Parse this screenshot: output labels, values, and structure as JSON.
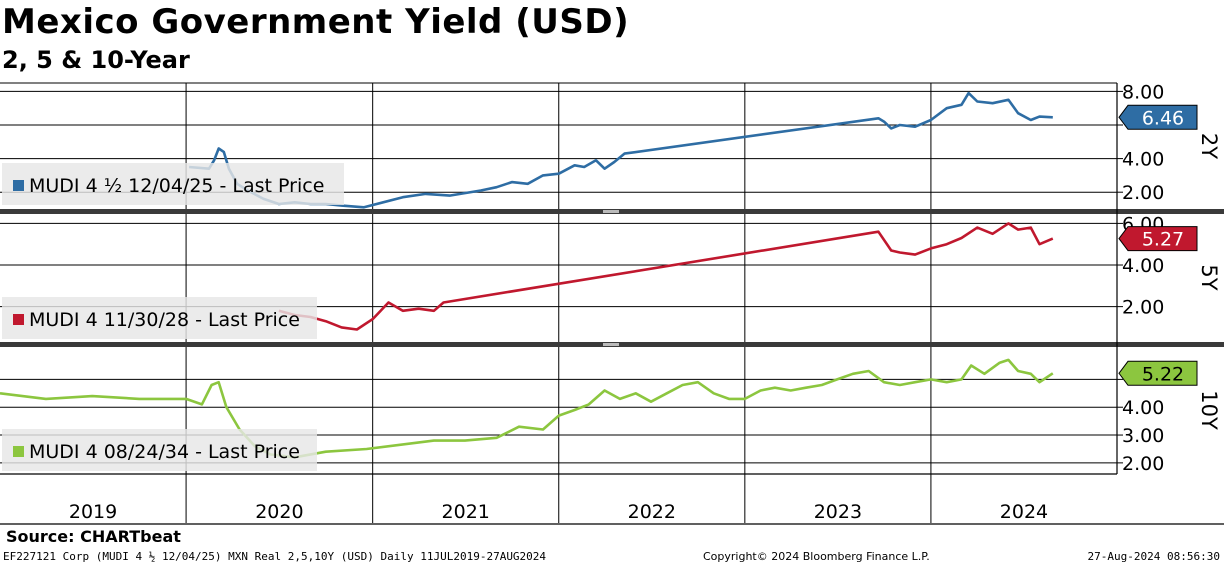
{
  "title": "Mexico Government Yield (USD)",
  "subtitle": "2, 5 & 10-Year",
  "source": "Source: CHARTbeat",
  "footer": {
    "left": "EF227121 Corp (MUDI 4 ½ 12/04/25) MXN Real 2,5,10Y (USD)  Daily 11JUL2019-27AUG2024",
    "center": "Copyright© 2024 Bloomberg Finance L.P.",
    "right": "27-Aug-2024 08:56:30"
  },
  "chart_data": {
    "type": "line",
    "x_axis": {
      "labels": [
        "2019",
        "2020",
        "2021",
        "2022",
        "2023",
        "2024"
      ],
      "range": [
        "2019-01-01",
        "2024-12-31"
      ]
    },
    "panels": [
      {
        "tenor_label": "2Y",
        "legend": "MUDI 4 ½  12/04/25 - Last Price",
        "color": "#2e6da4",
        "last_value": 6.46,
        "last_label": "6.46",
        "ylim": [
          1.0,
          8.5
        ],
        "ticks": [
          2.0,
          4.0,
          6.0,
          8.0
        ],
        "tick_labels": [
          "2.00",
          "4.00",
          "",
          "8.00"
        ],
        "points": [
          [
            "2020-01-07",
            3.5
          ],
          [
            "2020-02-15",
            3.4
          ],
          [
            "2020-02-25",
            3.9
          ],
          [
            "2020-03-05",
            4.6
          ],
          [
            "2020-03-15",
            4.4
          ],
          [
            "2020-03-25",
            3.4
          ],
          [
            "2020-04-10",
            2.5
          ],
          [
            "2020-05-01",
            2.1
          ],
          [
            "2020-06-01",
            1.6
          ],
          [
            "2020-07-01",
            1.3
          ],
          [
            "2020-08-01",
            1.4
          ],
          [
            "2020-09-01",
            1.3
          ],
          [
            "2020-10-01",
            1.3
          ],
          [
            "2020-11-01",
            1.2
          ],
          [
            "2020-12-15",
            1.1
          ],
          [
            "2021-03-01",
            1.7
          ],
          [
            "2021-04-15",
            1.9
          ],
          [
            "2021-06-01",
            1.8
          ],
          [
            "2021-08-01",
            2.1
          ],
          [
            "2021-09-01",
            2.3
          ],
          [
            "2021-10-01",
            2.6
          ],
          [
            "2021-11-01",
            2.5
          ],
          [
            "2021-12-01",
            3.0
          ],
          [
            "2022-01-01",
            3.1
          ],
          [
            "2022-02-01",
            3.6
          ],
          [
            "2022-02-20",
            3.5
          ],
          [
            "2022-03-15",
            3.9
          ],
          [
            "2022-04-01",
            3.4
          ],
          [
            "2022-04-20",
            3.8
          ],
          [
            "2022-05-10",
            4.3
          ],
          [
            "2023-09-20",
            6.4
          ],
          [
            "2023-10-01",
            6.2
          ],
          [
            "2023-10-15",
            5.8
          ],
          [
            "2023-11-01",
            6.0
          ],
          [
            "2023-12-01",
            5.9
          ],
          [
            "2024-01-01",
            6.3
          ],
          [
            "2024-02-01",
            7.0
          ],
          [
            "2024-03-01",
            7.2
          ],
          [
            "2024-03-15",
            7.9
          ],
          [
            "2024-04-01",
            7.4
          ],
          [
            "2024-05-01",
            7.3
          ],
          [
            "2024-06-01",
            7.5
          ],
          [
            "2024-06-20",
            6.7
          ],
          [
            "2024-07-15",
            6.3
          ],
          [
            "2024-08-01",
            6.5
          ],
          [
            "2024-08-27",
            6.46
          ]
        ]
      },
      {
        "tenor_label": "5Y",
        "legend": "MUDI 4 11/30/28 - Last Price",
        "color": "#c0182e",
        "last_value": 5.27,
        "last_label": "5.27",
        "ylim": [
          0.3,
          6.5
        ],
        "ticks": [
          2.0,
          4.0,
          6.0
        ],
        "tick_labels": [
          "2.00",
          "4.00",
          "6.00"
        ],
        "points": [
          [
            "2020-07-01",
            1.8
          ],
          [
            "2020-08-01",
            1.6
          ],
          [
            "2020-09-01",
            1.5
          ],
          [
            "2020-10-01",
            1.3
          ],
          [
            "2020-11-01",
            1.0
          ],
          [
            "2020-12-01",
            0.9
          ],
          [
            "2021-01-01",
            1.4
          ],
          [
            "2021-02-01",
            2.2
          ],
          [
            "2021-03-01",
            1.8
          ],
          [
            "2021-04-01",
            1.9
          ],
          [
            "2021-05-01",
            1.8
          ],
          [
            "2021-05-20",
            2.2
          ],
          [
            "2023-09-20",
            5.6
          ],
          [
            "2023-10-15",
            4.7
          ],
          [
            "2023-11-01",
            4.6
          ],
          [
            "2023-12-01",
            4.5
          ],
          [
            "2024-01-01",
            4.8
          ],
          [
            "2024-02-01",
            5.0
          ],
          [
            "2024-03-01",
            5.3
          ],
          [
            "2024-04-01",
            5.8
          ],
          [
            "2024-05-01",
            5.5
          ],
          [
            "2024-06-01",
            6.0
          ],
          [
            "2024-06-20",
            5.7
          ],
          [
            "2024-07-15",
            5.8
          ],
          [
            "2024-08-01",
            5.0
          ],
          [
            "2024-08-27",
            5.27
          ]
        ]
      },
      {
        "tenor_label": "10Y",
        "legend": "MUDI 4 08/24/34 - Last Price",
        "color": "#8cc63f",
        "last_value": 5.22,
        "last_label": "5.22",
        "ylim": [
          1.6,
          6.2
        ],
        "ticks": [
          2.0,
          3.0,
          4.0,
          5.0
        ],
        "tick_labels": [
          "2.00",
          "3.00",
          "4.00",
          ""
        ],
        "points": [
          [
            "2019-01-01",
            4.5
          ],
          [
            "2019-04-01",
            4.3
          ],
          [
            "2019-07-01",
            4.4
          ],
          [
            "2019-10-01",
            4.3
          ],
          [
            "2020-01-01",
            4.3
          ],
          [
            "2020-02-01",
            4.1
          ],
          [
            "2020-02-20",
            4.8
          ],
          [
            "2020-03-05",
            4.9
          ],
          [
            "2020-03-20",
            4.0
          ],
          [
            "2020-04-15",
            3.2
          ],
          [
            "2020-05-15",
            2.6
          ],
          [
            "2020-06-15",
            2.3
          ],
          [
            "2020-08-01",
            2.2
          ],
          [
            "2020-10-01",
            2.4
          ],
          [
            "2020-12-20",
            2.5
          ],
          [
            "2021-05-01",
            2.8
          ],
          [
            "2021-07-01",
            2.8
          ],
          [
            "2021-09-01",
            2.9
          ],
          [
            "2021-10-15",
            3.3
          ],
          [
            "2021-12-01",
            3.2
          ],
          [
            "2022-01-01",
            3.7
          ],
          [
            "2022-02-01",
            3.9
          ],
          [
            "2022-03-01",
            4.1
          ],
          [
            "2022-04-01",
            4.6
          ],
          [
            "2022-05-01",
            4.3
          ],
          [
            "2022-06-01",
            4.5
          ],
          [
            "2022-07-01",
            4.2
          ],
          [
            "2022-08-01",
            4.5
          ],
          [
            "2022-09-01",
            4.8
          ],
          [
            "2022-10-01",
            4.9
          ],
          [
            "2022-11-01",
            4.5
          ],
          [
            "2022-12-01",
            4.3
          ],
          [
            "2023-01-01",
            4.3
          ],
          [
            "2023-02-01",
            4.6
          ],
          [
            "2023-03-01",
            4.7
          ],
          [
            "2023-04-01",
            4.6
          ],
          [
            "2023-05-01",
            4.7
          ],
          [
            "2023-06-01",
            4.8
          ],
          [
            "2023-07-01",
            5.0
          ],
          [
            "2023-08-01",
            5.2
          ],
          [
            "2023-09-01",
            5.3
          ],
          [
            "2023-10-01",
            4.9
          ],
          [
            "2023-11-01",
            4.8
          ],
          [
            "2023-12-01",
            4.9
          ],
          [
            "2024-01-01",
            5.0
          ],
          [
            "2024-02-01",
            4.9
          ],
          [
            "2024-03-01",
            5.0
          ],
          [
            "2024-03-20",
            5.5
          ],
          [
            "2024-04-15",
            5.2
          ],
          [
            "2024-05-15",
            5.6
          ],
          [
            "2024-06-01",
            5.7
          ],
          [
            "2024-06-20",
            5.3
          ],
          [
            "2024-07-15",
            5.2
          ],
          [
            "2024-08-01",
            4.9
          ],
          [
            "2024-08-27",
            5.22
          ]
        ]
      }
    ]
  }
}
